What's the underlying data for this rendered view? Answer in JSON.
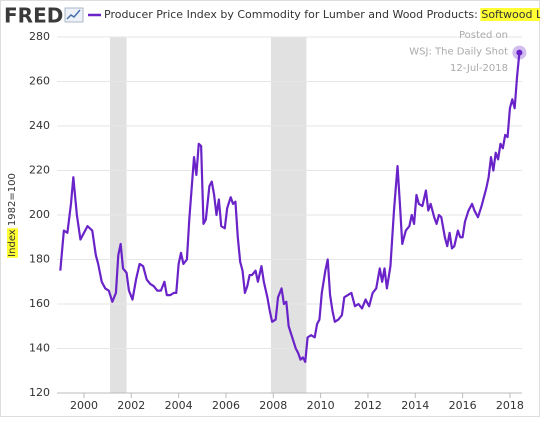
{
  "chart_data": {
    "type": "line",
    "logo": "FRED",
    "y_label": "Index 1982=100",
    "annotations": [
      "Posted on",
      "WSJ: The Daily Shot",
      "12-Jul-2018"
    ],
    "xlim": [
      1998.86,
      2018.51
    ],
    "xticks": [
      2000,
      2002,
      2004,
      2006,
      2008,
      2010,
      2012,
      2014,
      2016,
      2018
    ],
    "ylim": [
      120,
      280
    ],
    "yticks": [
      120,
      140,
      160,
      180,
      200,
      220,
      240,
      260,
      280
    ],
    "grid": true,
    "highlight_last": true,
    "shaded_periods": [
      [
        2001.1,
        2001.8
      ],
      [
        2007.9,
        2009.4
      ]
    ],
    "x": [
      1999.0,
      1999.15,
      1999.3,
      1999.45,
      1999.55,
      1999.7,
      1999.85,
      2000.0,
      2000.15,
      2000.35,
      2000.5,
      2000.6,
      2000.75,
      2000.9,
      2001.05,
      2001.2,
      2001.35,
      2001.45,
      2001.55,
      2001.65,
      2001.8,
      2001.9,
      2002.05,
      2002.2,
      2002.35,
      2002.5,
      2002.65,
      2002.8,
      2002.95,
      2003.1,
      2003.25,
      2003.4,
      2003.5,
      2003.65,
      2003.8,
      2003.9,
      2004.0,
      2004.1,
      2004.2,
      2004.35,
      2004.45,
      2004.55,
      2004.65,
      2004.75,
      2004.85,
      2004.95,
      2005.05,
      2005.15,
      2005.3,
      2005.4,
      2005.5,
      2005.6,
      2005.7,
      2005.8,
      2005.95,
      2006.05,
      2006.2,
      2006.3,
      2006.4,
      2006.5,
      2006.6,
      2006.7,
      2006.8,
      2006.9,
      2007.0,
      2007.1,
      2007.25,
      2007.35,
      2007.5,
      2007.6,
      2007.75,
      2007.85,
      2007.95,
      2008.1,
      2008.2,
      2008.35,
      2008.45,
      2008.55,
      2008.65,
      2008.8,
      2008.95,
      2009.05,
      2009.15,
      2009.25,
      2009.35,
      2009.45,
      2009.6,
      2009.75,
      2009.85,
      2009.95,
      2010.05,
      2010.2,
      2010.3,
      2010.4,
      2010.5,
      2010.6,
      2010.75,
      2010.9,
      2011.0,
      2011.15,
      2011.3,
      2011.45,
      2011.6,
      2011.75,
      2011.9,
      2012.05,
      2012.2,
      2012.35,
      2012.5,
      2012.6,
      2012.7,
      2012.8,
      2012.95,
      2013.1,
      2013.25,
      2013.35,
      2013.45,
      2013.6,
      2013.75,
      2013.85,
      2013.95,
      2014.05,
      2014.15,
      2014.3,
      2014.45,
      2014.55,
      2014.65,
      2014.8,
      2014.9,
      2015.0,
      2015.1,
      2015.25,
      2015.35,
      2015.45,
      2015.55,
      2015.65,
      2015.8,
      2015.9,
      2016.0,
      2016.1,
      2016.25,
      2016.4,
      2016.5,
      2016.65,
      2016.8,
      2016.9,
      2017.0,
      2017.1,
      2017.2,
      2017.3,
      2017.4,
      2017.5,
      2017.6,
      2017.7,
      2017.8,
      2017.9,
      2018.0,
      2018.1,
      2018.2,
      2018.3,
      2018.4
    ],
    "series": [
      {
        "name": "Producer Price Index by Commodity for Lumber and Wood Products: Softwood Lumber",
        "color": "#6a23c9",
        "values": [
          175,
          193,
          192,
          205,
          217,
          200,
          189,
          192,
          195,
          193,
          182,
          178,
          170,
          167,
          166,
          161,
          165,
          182,
          187,
          176,
          174,
          166,
          162,
          171,
          178,
          177,
          171,
          169,
          168,
          166,
          166,
          170,
          164,
          164,
          165,
          165,
          178,
          183,
          178,
          180,
          198,
          212,
          226,
          218,
          232,
          231,
          196,
          198,
          213,
          215,
          209,
          200,
          207,
          195,
          194,
          203,
          208,
          205,
          206,
          190,
          179,
          175,
          165,
          168,
          173,
          173,
          175,
          170,
          177,
          170,
          163,
          157,
          152,
          153,
          163,
          167,
          160,
          161,
          150,
          145,
          140,
          138,
          135,
          136,
          134,
          145,
          146,
          145,
          151,
          153,
          165,
          175,
          180,
          164,
          157,
          152,
          153,
          155,
          163,
          164,
          165,
          159,
          160,
          158,
          162,
          159,
          165,
          167,
          176,
          170,
          176,
          167,
          177,
          202,
          222,
          205,
          187,
          193,
          195,
          200,
          196,
          209,
          205,
          204,
          211,
          202,
          205,
          199,
          196,
          200,
          199,
          190,
          186,
          192,
          185,
          186,
          193,
          190,
          190,
          197,
          202,
          205,
          202,
          199,
          204,
          208,
          212,
          217,
          226,
          220,
          228,
          225,
          232,
          230,
          236,
          235,
          248,
          252,
          248,
          262,
          273
        ]
      }
    ]
  }
}
